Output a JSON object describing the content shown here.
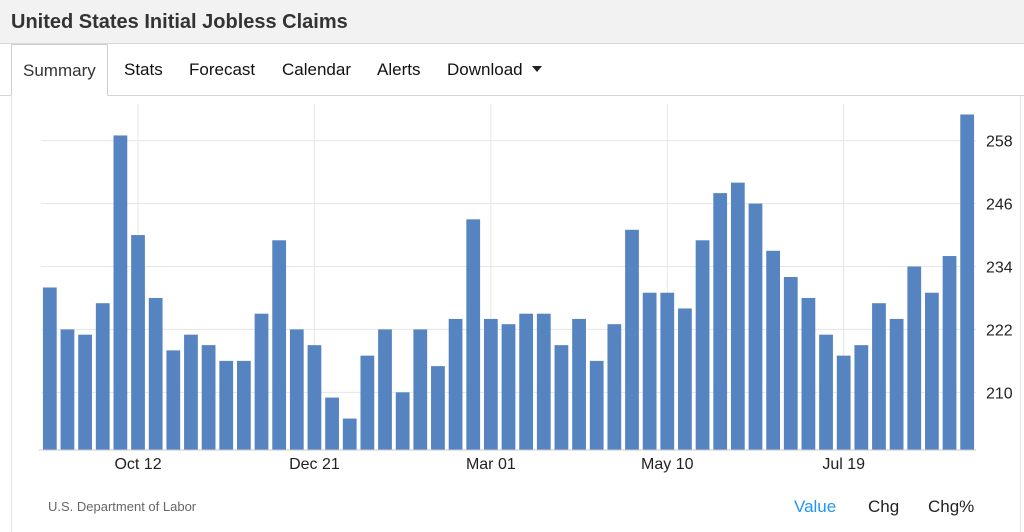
{
  "header": {
    "title": "United States Initial Jobless Claims"
  },
  "tabs": [
    {
      "label": "Summary",
      "active": true
    },
    {
      "label": "Stats"
    },
    {
      "label": "Forecast"
    },
    {
      "label": "Calendar"
    },
    {
      "label": "Alerts"
    },
    {
      "label": "Download",
      "icon": "caret-down-icon"
    }
  ],
  "footer": {
    "source": "U.S. Department of Labor",
    "toggles": [
      {
        "label": "Value",
        "active": true
      },
      {
        "label": "Chg"
      },
      {
        "label": "Chg%"
      }
    ]
  },
  "colors": {
    "bar": "#5584c1",
    "active_toggle": "#2196f3",
    "grid": "#e6e6e6"
  },
  "chart_data": {
    "type": "bar",
    "title": "",
    "xlabel": "",
    "ylabel": "",
    "x_ticks": [
      {
        "label": "Oct 12",
        "index": 5
      },
      {
        "label": "Dec 21",
        "index": 15
      },
      {
        "label": "Mar 01",
        "index": 25
      },
      {
        "label": "May 10",
        "index": 35
      },
      {
        "label": "Jul 19",
        "index": 45
      }
    ],
    "y_ticks": [
      210,
      222,
      234,
      246,
      258
    ],
    "ylim": [
      199,
      265
    ],
    "y_axis_position": "right",
    "grid": true,
    "series": [
      {
        "values": [
          230,
          222,
          221,
          227,
          259,
          240,
          228,
          218,
          221,
          219,
          216,
          216,
          225,
          239,
          222,
          219,
          209,
          205,
          217,
          222,
          210,
          222,
          215,
          224,
          243,
          224,
          223,
          225,
          225,
          219,
          224,
          216,
          223,
          241,
          229,
          229,
          226,
          239,
          248,
          250,
          246,
          237,
          232,
          228,
          221,
          217,
          219,
          227,
          224,
          234,
          229,
          236,
          263
        ]
      }
    ]
  }
}
